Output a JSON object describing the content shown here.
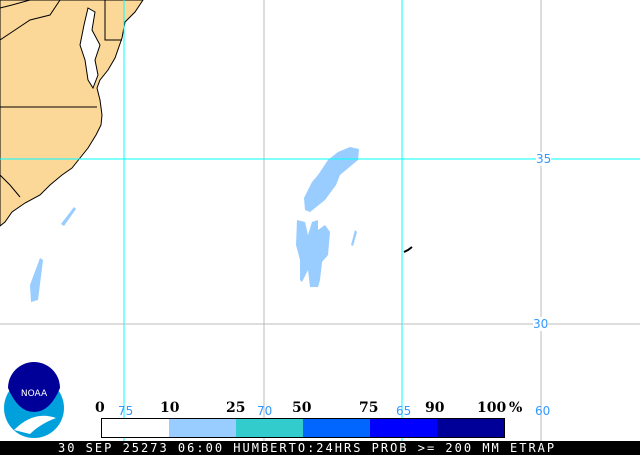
{
  "map": {
    "land_color": "#fcd898",
    "prob_color": "#99ccff",
    "grid_lon_labels": [
      "75",
      "70",
      "65",
      "60"
    ],
    "grid_lat_labels": [
      "35",
      "30"
    ]
  },
  "legend": {
    "ticks": [
      "0",
      "10",
      "25",
      "50",
      "75",
      "90",
      "100"
    ],
    "unit": "%",
    "colors": [
      "#ffffff",
      "#99ccff",
      "#33cccc",
      "#0066ff",
      "#0000ff",
      "#000099"
    ]
  },
  "logo": {
    "text": "NOAA"
  },
  "footer": {
    "text": "30 SEP 25273 06:00 HUMBERTO:24HRS PROB >= 200 MM ETRAP"
  }
}
